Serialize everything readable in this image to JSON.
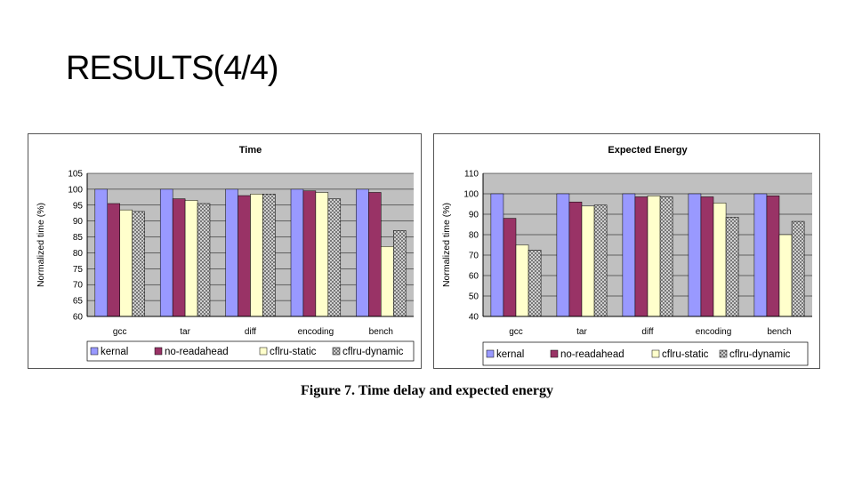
{
  "slide": {
    "title": "RESULTS(4/4)",
    "caption": "Figure 7. Time delay and expected energy"
  },
  "colors": {
    "plot_bg": "#c0c0c0",
    "kernal": "#9999ff",
    "no_readahead": "#993366",
    "cflru_static": "#ffffcc",
    "cflru_dynamic": "#e0e0e0",
    "hatch": "#555555"
  },
  "chart_data": [
    {
      "type": "bar",
      "title": "Time",
      "ylabel": "Normalized time (%)",
      "xlabel": "",
      "ylim": [
        60,
        105
      ],
      "yticks": [
        "60",
        "65",
        "70",
        "75",
        "80",
        "85",
        "90",
        "95",
        "100",
        "105"
      ],
      "categories": [
        "gcc",
        "tar",
        "diff",
        "encoding",
        "bench"
      ],
      "series": [
        {
          "name": "kernal",
          "values": [
            100,
            100,
            100,
            100,
            100
          ]
        },
        {
          "name": "no-readahead",
          "values": [
            95.5,
            97,
            98,
            99.5,
            99
          ]
        },
        {
          "name": "cflru-static",
          "values": [
            93.5,
            96.5,
            98.5,
            99,
            82
          ]
        },
        {
          "name": "cflru-dynamic",
          "values": [
            93,
            95.5,
            98.5,
            97,
            87
          ]
        }
      ],
      "legend": "bottom"
    },
    {
      "type": "bar",
      "title": "Expected Energy",
      "ylabel": "Normalized time (%)",
      "xlabel": "",
      "ylim": [
        40,
        110
      ],
      "yticks": [
        "40",
        "50",
        "60",
        "70",
        "80",
        "90",
        "100",
        "110"
      ],
      "categories": [
        "gcc",
        "tar",
        "diff",
        "encoding",
        "bench"
      ],
      "series": [
        {
          "name": "kernal",
          "values": [
            100,
            100,
            100,
            100,
            100
          ]
        },
        {
          "name": "no-readahead",
          "values": [
            88,
            96,
            98.5,
            98.5,
            99
          ]
        },
        {
          "name": "cflru-static",
          "values": [
            75,
            94,
            99,
            95.5,
            80
          ]
        },
        {
          "name": "cflru-dynamic",
          "values": [
            72.5,
            94.5,
            98.5,
            88.5,
            86.5
          ]
        }
      ],
      "legend": "bottom"
    }
  ]
}
